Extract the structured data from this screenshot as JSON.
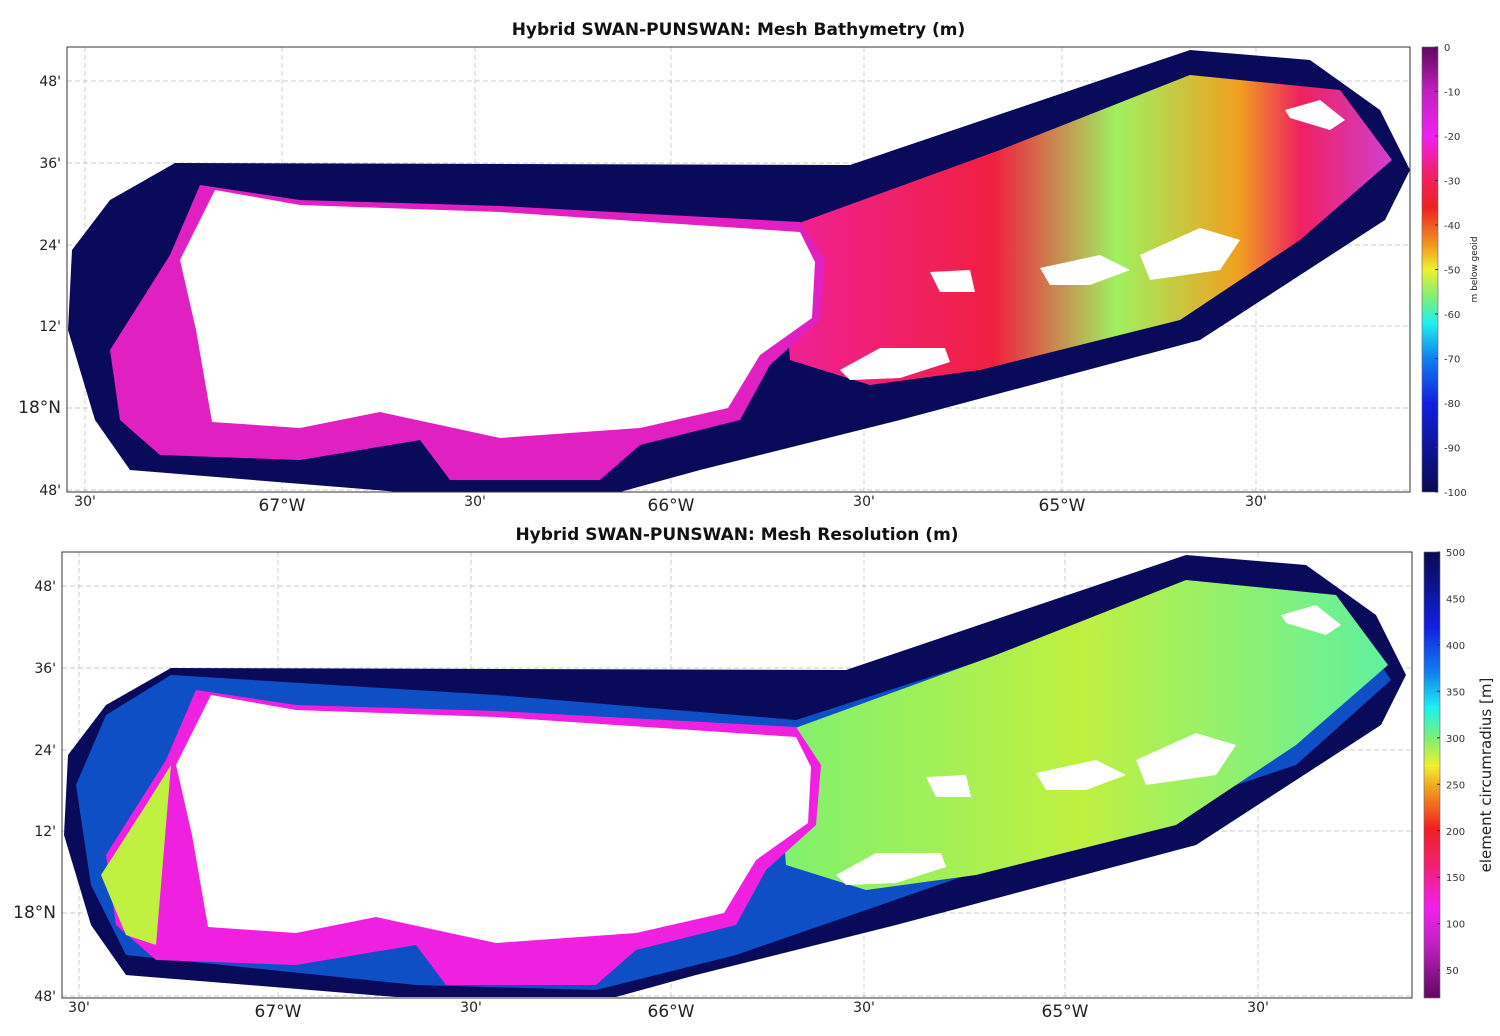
{
  "chart_data": [
    {
      "type": "heatmap",
      "title": "Hybrid SWAN-PUNSWAN: Mesh Bathymetry (m)",
      "lat_ticks": [
        "48'",
        "36'",
        "24'",
        "12'",
        "18°N",
        "48'"
      ],
      "lon_ticks": [
        "30'",
        "67°W",
        "30'",
        "66°W",
        "30'",
        "65°W",
        "30'"
      ],
      "colorbar": {
        "label": "m below geoid",
        "range": [
          -100,
          0
        ],
        "ticks": [
          "0",
          "-10",
          "-20",
          "-30",
          "-40",
          "-50",
          "-60",
          "-70",
          "-80",
          "-90",
          "-100"
        ],
        "colormap": [
          "#0a0a5a",
          "#1030e0",
          "#20e0f0",
          "#80f070",
          "#f0f030",
          "#f08020",
          "#f02020",
          "#f0209a",
          "#f020f0",
          "#600860"
        ]
      }
    },
    {
      "type": "heatmap",
      "title": "Hybrid SWAN-PUNSWAN: Mesh Resolution (m)",
      "lat_ticks": [
        "48'",
        "36'",
        "24'",
        "12'",
        "18°N",
        "48'"
      ],
      "lon_ticks": [
        "30'",
        "67°W",
        "30'",
        "66°W",
        "30'",
        "65°W",
        "30'"
      ],
      "colorbar": {
        "label": "element circumradius [m]",
        "range": [
          20,
          500
        ],
        "ticks": [
          "500",
          "450",
          "400",
          "350",
          "300",
          "250",
          "200",
          "150",
          "100",
          "50"
        ],
        "colormap": [
          "#600860",
          "#f020f0",
          "#f0209a",
          "#f02020",
          "#f08020",
          "#f0f030",
          "#80f070",
          "#20e0f0",
          "#1030e0",
          "#0a0a5a"
        ]
      }
    }
  ]
}
